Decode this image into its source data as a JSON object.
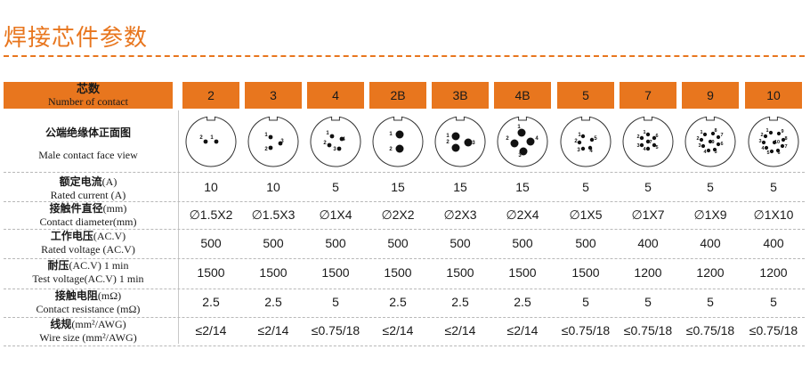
{
  "page": {
    "title": "焊接芯件参数"
  },
  "table": {
    "header": {
      "zh": "芯数",
      "en": "Number of contact"
    },
    "columns": [
      "2",
      "3",
      "4",
      "2B",
      "3B",
      "4B",
      "5",
      "7",
      "9",
      "10"
    ],
    "face_row": {
      "zh": "公端绝缘体正面图",
      "en": "Male  contact  face  view"
    },
    "rows": [
      {
        "zh": "额定电流",
        "zh_unit": "(A)",
        "en": "Rated current  (A)",
        "values": [
          "10",
          "10",
          "5",
          "15",
          "15",
          "15",
          "5",
          "5",
          "5",
          "5"
        ]
      },
      {
        "zh": "接触件直径",
        "zh_unit": "(mm)",
        "en": "Contact diameter(mm)",
        "values": [
          "∅1.5X2",
          "∅1.5X3",
          "∅1X4",
          "∅2X2",
          "∅2X3",
          "∅2X4",
          "∅1X5",
          "∅1X7",
          "∅1X9",
          "∅1X10"
        ]
      },
      {
        "zh": "工作电压",
        "zh_unit": "(AC.V)",
        "en": "Rated voltage (AC.V)",
        "values": [
          "500",
          "500",
          "500",
          "500",
          "500",
          "500",
          "500",
          "400",
          "400",
          "400"
        ]
      },
      {
        "zh": "耐压",
        "zh_unit": "(AC.V) 1 min",
        "en": "Test voltage(AC.V) 1 min",
        "values": [
          "1500",
          "1500",
          "1500",
          "1500",
          "1500",
          "1500",
          "1500",
          "1200",
          "1200",
          "1200"
        ]
      },
      {
        "zh": "接触电阻",
        "zh_unit": "(mΩ)",
        "en": "Contact resistance (mΩ)",
        "values": [
          "2.5",
          "2.5",
          "5",
          "2.5",
          "2.5",
          "2.5",
          "5",
          "5",
          "5",
          "5"
        ]
      },
      {
        "zh": "线规",
        "zh_unit": "(mm²/AWG)",
        "en": "Wire size (mm²/AWG)",
        "values": [
          "≤2/14",
          "≤2/14",
          "≤0.75/18",
          "≤2/14",
          "≤2/14",
          "≤2/14",
          "≤0.75/18",
          "≤0.75/18",
          "≤0.75/18",
          "≤0.75/18"
        ]
      }
    ],
    "pin_labels": {
      "2": [
        "2",
        "1"
      ],
      "3": [
        "1",
        "2",
        "3"
      ],
      "4": [
        "1",
        "2",
        "3",
        "4"
      ],
      "2B": [
        "1",
        "2"
      ],
      "3B": [
        "2",
        "1",
        "3"
      ],
      "4B": [
        "1",
        "2",
        "3",
        "4"
      ],
      "5": [
        "1",
        "2",
        "3",
        "4",
        "5"
      ],
      "7": [
        "1",
        "2",
        "3",
        "4",
        "5",
        "6",
        "7"
      ],
      "9": [
        "1",
        "2",
        "3",
        "4",
        "5",
        "6",
        "7",
        "8",
        "9"
      ],
      "10": [
        "1",
        "2",
        "3",
        "4",
        "5",
        "6",
        "7",
        "8",
        "9",
        "10"
      ]
    }
  },
  "colors": {
    "accent": "#e8761e",
    "text": "#1a1a1a",
    "line": "#b8b8b8"
  }
}
